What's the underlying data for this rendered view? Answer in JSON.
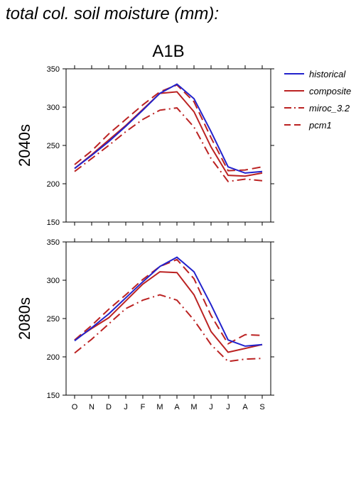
{
  "page": {
    "title": "total col. soil moisture (mm):"
  },
  "figure": {
    "scenario": "A1B"
  },
  "colors": {
    "historical": "#2222cc",
    "models": "#bb2222",
    "axis": "#000000"
  },
  "chart_data": {
    "type": "line",
    "legend_position": "right",
    "grid": false,
    "categories": [
      "O",
      "N",
      "D",
      "J",
      "F",
      "M",
      "A",
      "M",
      "J",
      "J",
      "A",
      "S"
    ],
    "ylim": [
      150,
      350
    ],
    "yticks": [
      150,
      200,
      250,
      300,
      350
    ],
    "legend": [
      {
        "name": "historical",
        "style": "solid",
        "color": "#2222cc"
      },
      {
        "name": "composite",
        "style": "solid",
        "color": "#bb2222"
      },
      {
        "name": "miroc_3.2",
        "style": "dashdot",
        "color": "#bb2222"
      },
      {
        "name": "pcm1",
        "style": "dashed",
        "color": "#bb2222"
      }
    ],
    "panels": [
      {
        "ylabel": "2040s",
        "series": [
          {
            "name": "historical",
            "values": [
              220,
              237,
              255,
              275,
              296,
              318,
              330,
              311,
              268,
              222,
              214,
              216
            ]
          },
          {
            "name": "composite",
            "values": [
              220,
              238,
              257,
              276,
              297,
              318,
              320,
              294,
              248,
              211,
              210,
              214
            ]
          },
          {
            "name": "miroc_3.2",
            "values": [
              216,
              233,
              250,
              268,
              284,
              296,
              299,
              274,
              233,
              203,
              206,
              204
            ]
          },
          {
            "name": "pcm1",
            "values": [
              225,
              243,
              265,
              284,
              303,
              320,
              329,
              307,
              260,
              217,
              218,
              222
            ]
          }
        ]
      },
      {
        "ylabel": "2080s",
        "series": [
          {
            "name": "historical",
            "values": [
              221,
              238,
              256,
              277,
              298,
              318,
              330,
              311,
              268,
              222,
              214,
              216
            ]
          },
          {
            "name": "composite",
            "values": [
              222,
              237,
              251,
              273,
              295,
              311,
              310,
              281,
              233,
              206,
              211,
              216
            ]
          },
          {
            "name": "miroc_3.2",
            "values": [
              205,
              223,
              243,
              263,
              274,
              281,
              274,
              248,
              216,
              194,
              197,
              198
            ]
          },
          {
            "name": "pcm1",
            "values": [
              222,
              241,
              262,
              281,
              301,
              318,
              327,
              302,
              254,
              217,
              229,
              228
            ]
          }
        ]
      }
    ]
  }
}
